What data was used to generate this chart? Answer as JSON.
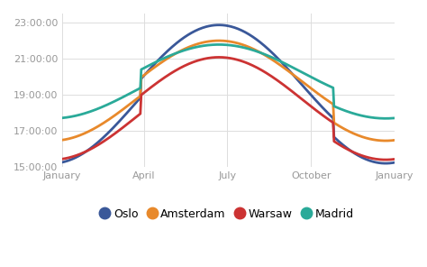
{
  "title": "",
  "background_color": "#ffffff",
  "grid_color": "#dddddd",
  "line_width": 2.0,
  "cities": [
    "Oslo",
    "Amsterdam",
    "Warsaw",
    "Madrid"
  ],
  "colors": {
    "Oslo": "#3a5899",
    "Amsterdam": "#e8892b",
    "Warsaw": "#cc3333",
    "Madrid": "#2aaa99"
  },
  "ylim_bottom": 900,
  "ylim_top": 1410,
  "ytick_hours": [
    15,
    17,
    19,
    21,
    23
  ],
  "xtick_labels": [
    "January",
    "April",
    "July",
    "October",
    "January"
  ],
  "xtick_positions": [
    0,
    90,
    181,
    273,
    364
  ],
  "legend_fontsize": 9,
  "tick_fontsize": 8,
  "oslo_data": {
    "days": [
      0,
      30,
      59,
      79,
      80,
      120,
      150,
      181,
      210,
      240,
      265,
      266,
      300,
      330,
      364
    ],
    "values": [
      913,
      935,
      1048,
      1148,
      1148,
      1281,
      1365,
      1378,
      1288,
      1168,
      1088,
      1088,
      948,
      868,
      913
    ]
  },
  "amsterdam_data": {
    "days": [
      0,
      30,
      59,
      79,
      80,
      120,
      150,
      181,
      210,
      240,
      265,
      266,
      300,
      330,
      364
    ],
    "values": [
      1002,
      1022,
      1105,
      1168,
      1228,
      1282,
      1318,
      1320,
      1260,
      1172,
      1108,
      1048,
      998,
      978,
      1002
    ]
  },
  "warsaw_data": {
    "days": [
      0,
      30,
      59,
      79,
      80,
      120,
      150,
      181,
      210,
      240,
      265,
      266,
      300,
      330,
      364
    ],
    "values": [
      940,
      962,
      1055,
      1118,
      1178,
      1230,
      1268,
      1265,
      1207,
      1115,
      1052,
      992,
      940,
      920,
      940
    ]
  },
  "madrid_data": {
    "days": [
      0,
      30,
      59,
      79,
      80,
      120,
      150,
      181,
      210,
      240,
      265,
      266,
      300,
      330,
      364
    ],
    "values": [
      1062,
      1078,
      1118,
      1148,
      1208,
      1258,
      1282,
      1278,
      1240,
      1178,
      1138,
      1078,
      1052,
      1052,
      1062
    ]
  }
}
